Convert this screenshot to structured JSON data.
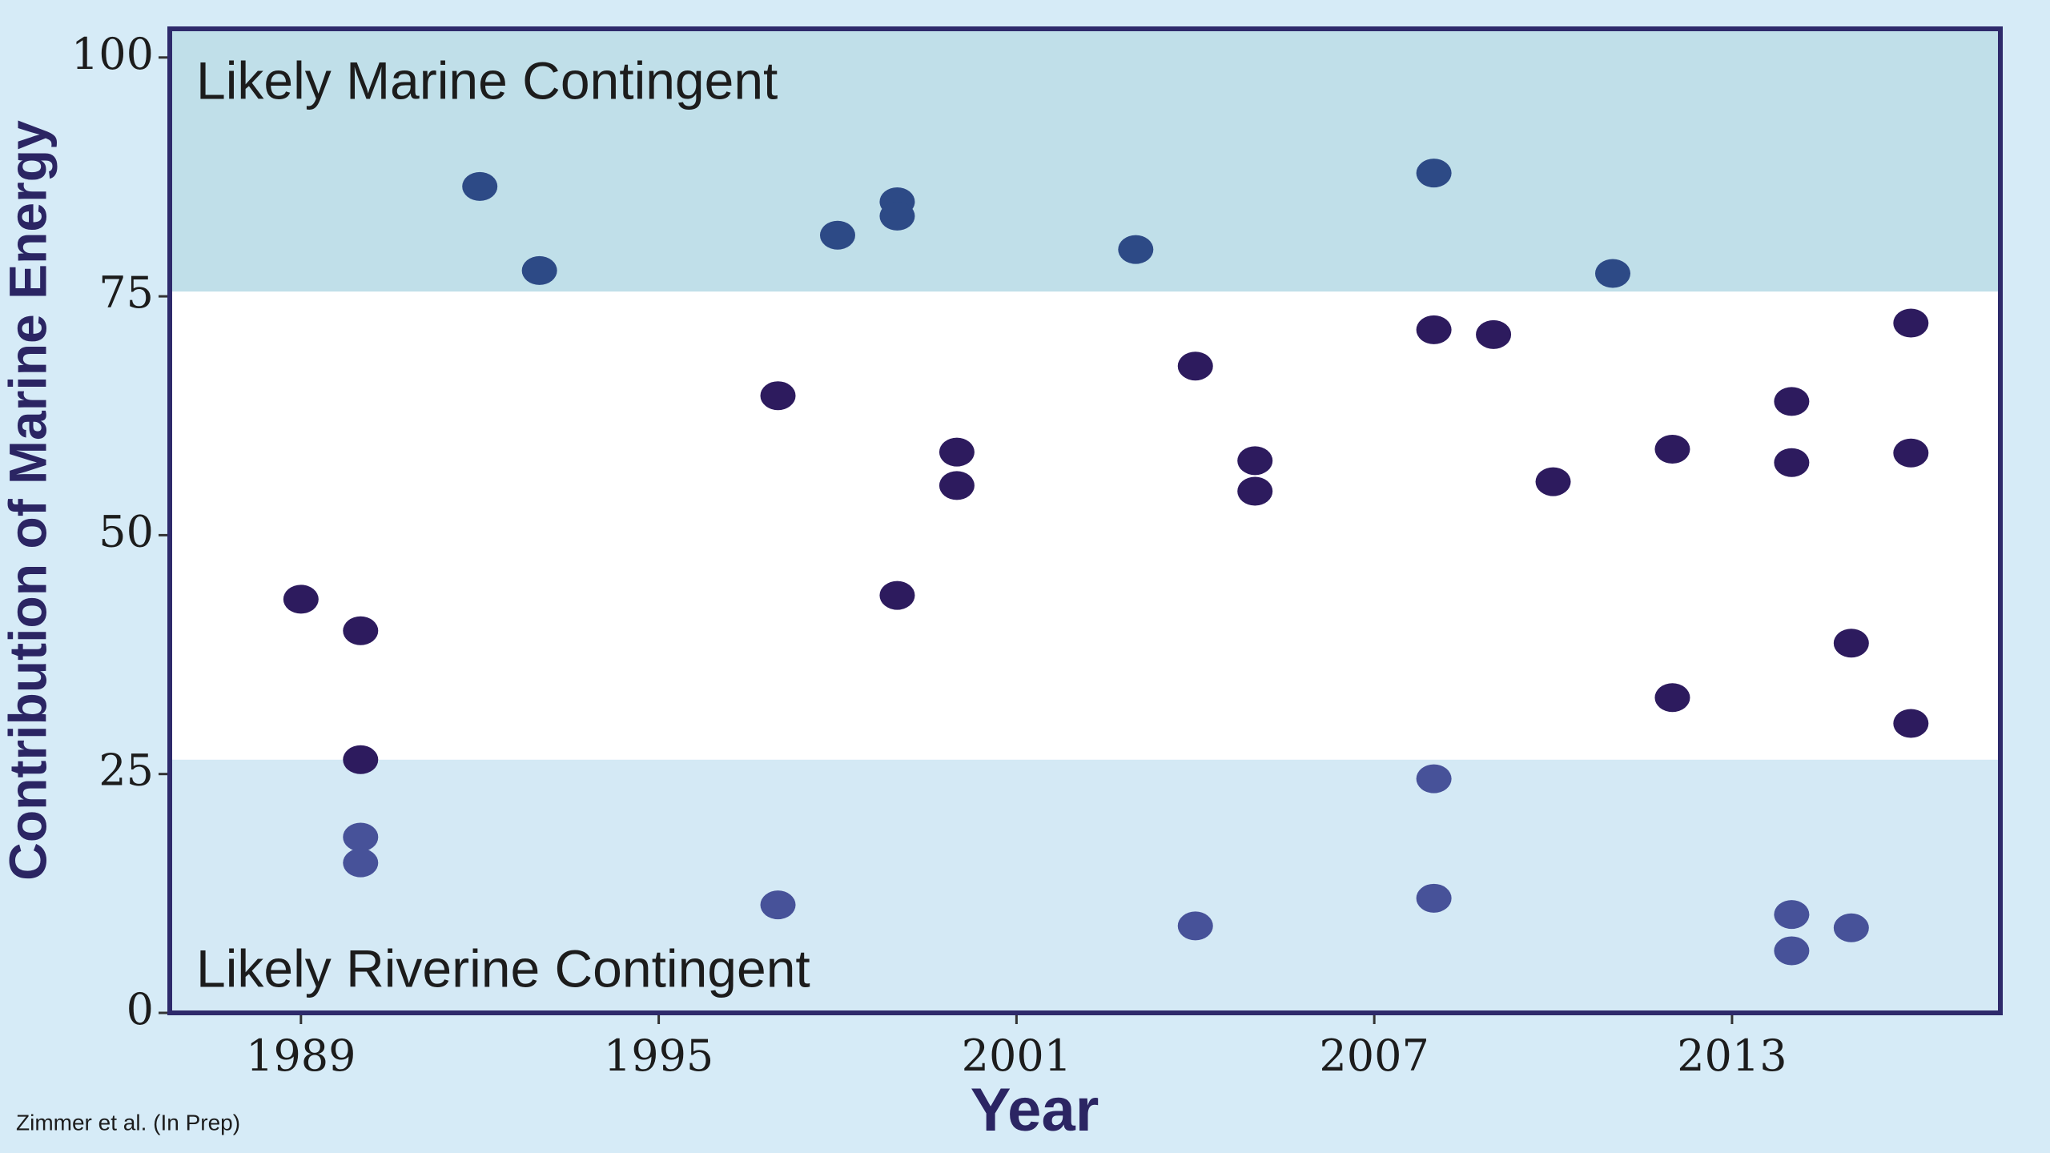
{
  "chart_data": {
    "type": "scatter",
    "xlabel": "Year",
    "ylabel": "Contribution of Marine Energy",
    "source": "Zimmer et al. (In Prep)",
    "xlim": [
      1986.8,
      2017.5
    ],
    "ylim": [
      0,
      103
    ],
    "xticks": [
      1989,
      1995,
      2001,
      2007,
      2013
    ],
    "yticks": [
      0,
      25,
      50,
      75,
      100
    ],
    "bands": [
      {
        "label": "Likely Marine Contingent",
        "range": [
          75.5,
          103
        ],
        "color": "#c0dfe9"
      },
      {
        "label": "Likely Riverine Contingent",
        "range": [
          0,
          26.5
        ],
        "color": "#d4e9f5"
      }
    ],
    "series": [
      {
        "color": "#2d4a86",
        "x": [
          1992,
          1993,
          1998,
          1999,
          1999,
          2003,
          2008,
          2011
        ],
        "values": [
          86.5,
          77.7,
          81.4,
          84.9,
          83.4,
          79.9,
          87.9,
          77.4
        ]
      },
      {
        "color": "#2d1b5e",
        "x": [
          1989,
          1990,
          1990,
          1997,
          1999,
          2000,
          2000,
          2004,
          2005,
          2005,
          2008,
          2009,
          2010,
          2012,
          2012,
          2014,
          2014,
          2015,
          2016,
          2016,
          2016
        ],
        "values": [
          43.3,
          40.0,
          26.5,
          64.6,
          43.7,
          58.7,
          55.2,
          67.7,
          57.8,
          54.6,
          71.5,
          71.0,
          55.6,
          59.0,
          33.0,
          64.0,
          57.6,
          38.7,
          72.2,
          58.6,
          30.3
        ]
      },
      {
        "color": "#475299",
        "x": [
          1990,
          1990,
          1997,
          2004,
          2008,
          2008,
          2014,
          2014,
          2015
        ],
        "values": [
          18.4,
          15.7,
          11.3,
          9.1,
          24.5,
          12.0,
          10.3,
          6.5,
          8.9
        ]
      }
    ]
  }
}
